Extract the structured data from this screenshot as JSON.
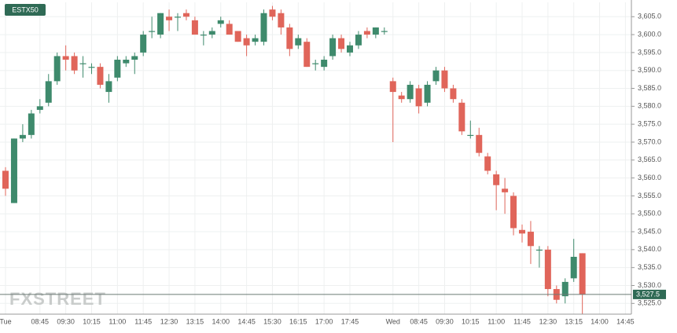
{
  "chart_data": {
    "type": "candlestick",
    "badge": "ESTX50",
    "watermark": "FXSTREET",
    "categories": [
      "Tue",
      null,
      null,
      null,
      "08:45",
      null,
      null,
      "09:30",
      null,
      null,
      "10:15",
      null,
      null,
      "11:00",
      null,
      null,
      "11:45",
      null,
      null,
      "12:30",
      null,
      null,
      "13:15",
      null,
      null,
      "14:00",
      null,
      null,
      "14:45",
      null,
      null,
      "15:30",
      null,
      null,
      "16:15",
      null,
      null,
      "17:00",
      null,
      null,
      "17:45",
      null,
      null,
      null,
      null,
      "Wed",
      null,
      null,
      "08:45",
      null,
      null,
      "09:30",
      null,
      null,
      "10:15",
      null,
      null,
      "11:00",
      null,
      null,
      "11:45",
      null,
      null,
      "12:30",
      null,
      null,
      "13:15",
      null,
      null,
      "14:00",
      null,
      null,
      "14:45"
    ],
    "open": [
      3562,
      3553,
      3571,
      3572,
      3579,
      3581,
      3587,
      3594,
      3594,
      3592,
      3591,
      3591,
      3584,
      3588,
      3592,
      3593,
      3595,
      3601,
      3600,
      3605,
      3605,
      3606,
      3604,
      3600,
      3600,
      3603,
      3603,
      3601,
      3599,
      3598,
      3598,
      3607,
      3606,
      3602,
      3597,
      3598,
      3592,
      3591,
      3594,
      3599,
      3595,
      3597,
      3601,
      3600,
      3601,
      3587,
      3583,
      3582,
      3585,
      3581,
      3587,
      3590,
      3585,
      3581,
      3572,
      3572,
      3566,
      3561,
      3557,
      3555,
      3545.5,
      3545,
      3540,
      3540,
      3529,
      3527,
      3532,
      3539,
      null,
      null,
      null,
      null,
      null
    ],
    "high": [
      3563,
      3571,
      3575,
      3579,
      3582,
      3589,
      3595,
      3597,
      3595,
      3594,
      3592,
      3592,
      3589,
      3594,
      3594,
      3595,
      3601,
      3605,
      3606,
      3607,
      3606,
      3607,
      3605,
      3601,
      3602,
      3605,
      3604,
      3601,
      3600,
      3600,
      3607,
      3608,
      3607,
      3603,
      3600,
      3599,
      3593,
      3594,
      3600,
      3600,
      3598,
      3601,
      3602,
      3602,
      3602,
      3588,
      3584,
      3587,
      3586,
      3587,
      3591,
      3591,
      3586,
      3582,
      3576,
      3574,
      3567,
      3562,
      3560,
      3556,
      3547,
      3548,
      3541,
      3541,
      3530,
      3532,
      3543,
      3539,
      null,
      null,
      null,
      null,
      null
    ],
    "low": [
      3555,
      3553,
      3570,
      3571,
      3578,
      3580,
      3586,
      3590,
      3589,
      3588,
      3589,
      3585,
      3581,
      3587,
      3591,
      3589,
      3594,
      3599,
      3599,
      3601,
      3601,
      3604,
      3600,
      3597,
      3599,
      3602,
      3600,
      3598,
      3594,
      3597,
      3597,
      3604,
      3600,
      3594,
      3596,
      3591,
      3590,
      3590,
      3593,
      3595,
      3594,
      3596,
      3599,
      3599,
      3600,
      3570,
      3581,
      3581,
      3578,
      3580,
      3586,
      3584,
      3581,
      3572,
      3571,
      3566,
      3561,
      3551,
      3550,
      3544,
      3542,
      3536,
      3535,
      3527,
      3525,
      3525,
      3531,
      3522,
      null,
      null,
      null,
      null,
      null
    ],
    "close": [
      3557,
      3571,
      3572,
      3578,
      3580,
      3587,
      3594,
      3593,
      3590,
      3592,
      3591,
      3586,
      3587,
      3593,
      3593,
      3594,
      3600,
      3601,
      3606,
      3604,
      3605,
      3605,
      3600,
      3600,
      3601,
      3604,
      3600,
      3598,
      3597,
      3599,
      3606,
      3605,
      3602,
      3596,
      3599,
      3591,
      3592,
      3593,
      3599,
      3596,
      3597,
      3600,
      3600,
      3602,
      3601,
      3584,
      3582,
      3586,
      3580,
      3586,
      3590,
      3585,
      3582,
      3573,
      3572,
      3567,
      3562,
      3558,
      3556,
      3546,
      3544.5,
      3541,
      3540,
      3529,
      3526,
      3531,
      3538,
      3527.5,
      null,
      null,
      null,
      null,
      null
    ],
    "up_color": "#3e8a6c",
    "down_color": "#e0655a",
    "last_price": {
      "value": 3527.5,
      "label": "3,527.5"
    },
    "ylim": [
      3522,
      3609
    ],
    "yticks": [
      {
        "value": 3525,
        "label": "3,525.0"
      },
      {
        "value": 3530,
        "label": "3,530.0"
      },
      {
        "value": 3535,
        "label": "3,535.0"
      },
      {
        "value": 3540,
        "label": "3,540.0"
      },
      {
        "value": 3545,
        "label": "3,545.0"
      },
      {
        "value": 3550,
        "label": "3,550.0"
      },
      {
        "value": 3555,
        "label": "3,555.0"
      },
      {
        "value": 3560,
        "label": "3,560.0"
      },
      {
        "value": 3565,
        "label": "3,565.0"
      },
      {
        "value": 3570,
        "label": "3,570.0"
      },
      {
        "value": 3575,
        "label": "3,575.0"
      },
      {
        "value": 3580,
        "label": "3,580.0"
      },
      {
        "value": 3585,
        "label": "3,585.0"
      },
      {
        "value": 3590,
        "label": "3,590.0"
      },
      {
        "value": 3595,
        "label": "3,595.0"
      },
      {
        "value": 3600,
        "label": "3,600.0"
      },
      {
        "value": 3605,
        "label": "3,605.0"
      }
    ],
    "grid": true
  }
}
